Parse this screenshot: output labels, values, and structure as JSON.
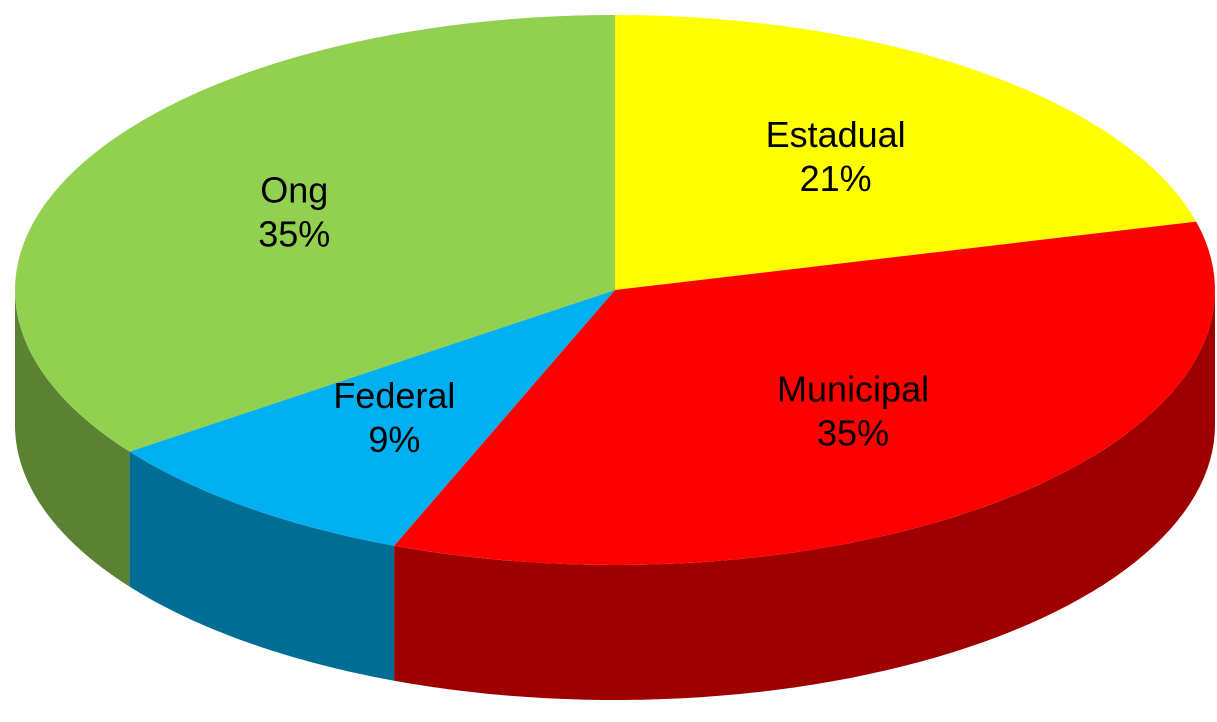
{
  "chart_data": {
    "type": "pie",
    "categories": [
      "Estadual",
      "Municipal",
      "Federal",
      "Ong"
    ],
    "values": [
      21,
      35,
      9,
      35
    ],
    "value_labels": [
      "21%",
      "35%",
      "9%",
      "35%"
    ],
    "colors": [
      "#ffff00",
      "#ff0000",
      "#00b0f0",
      "#92d050"
    ]
  }
}
